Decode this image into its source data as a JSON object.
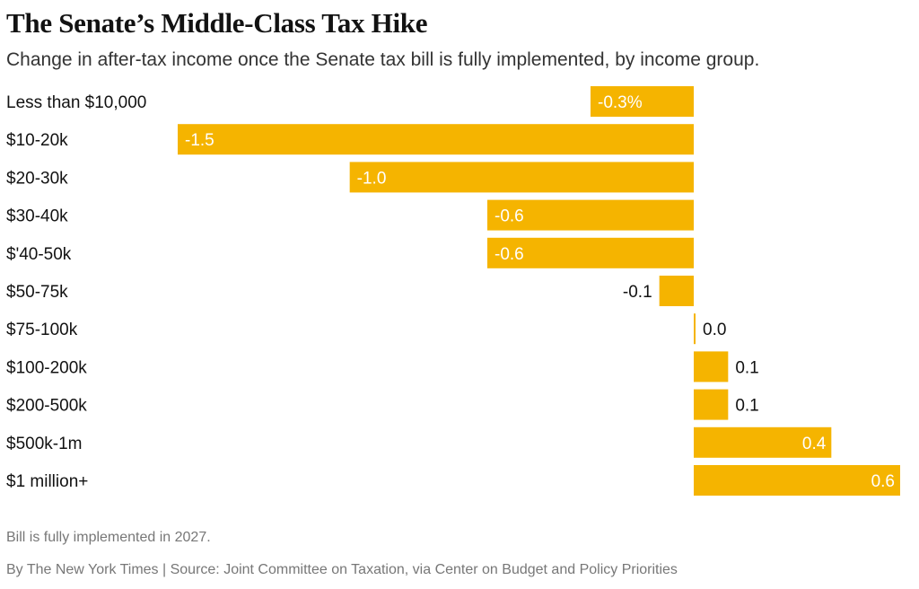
{
  "header": {
    "title": "The Senate’s Middle-Class Tax Hike",
    "subtitle": "Change in after-tax income once the Senate tax bill is fully implemented, by income group."
  },
  "footer": {
    "note": "Bill is fully implemented in 2027.",
    "credit": "By The New York Times | Source: Joint Committee on Taxation, via Center on Budget and Policy Priorities"
  },
  "colors": {
    "bar": "#f5b400",
    "text": "#121212",
    "muted": "#777777"
  },
  "chart_data": {
    "type": "bar",
    "orientation": "horizontal",
    "categories": [
      "Less than $10,000",
      "$10-20k",
      "$20-30k",
      "$30-40k",
      "$'40-50k",
      "$50-75k",
      "$75-100k",
      "$100-200k",
      "$200-500k",
      "$500k-1m",
      "$1 million+"
    ],
    "values": [
      -0.3,
      -1.5,
      -1.0,
      -0.6,
      -0.6,
      -0.1,
      0.0,
      0.1,
      0.1,
      0.4,
      0.6
    ],
    "value_labels": [
      "-0.3%",
      "-1.5",
      "-1.0",
      "-0.6",
      "-0.6",
      "-0.1",
      "0.0",
      "0.1",
      "0.1",
      "0.4",
      "0.6"
    ],
    "unit": "%",
    "xlim": [
      -1.5,
      0.6
    ],
    "grid": false,
    "legend": "none"
  }
}
